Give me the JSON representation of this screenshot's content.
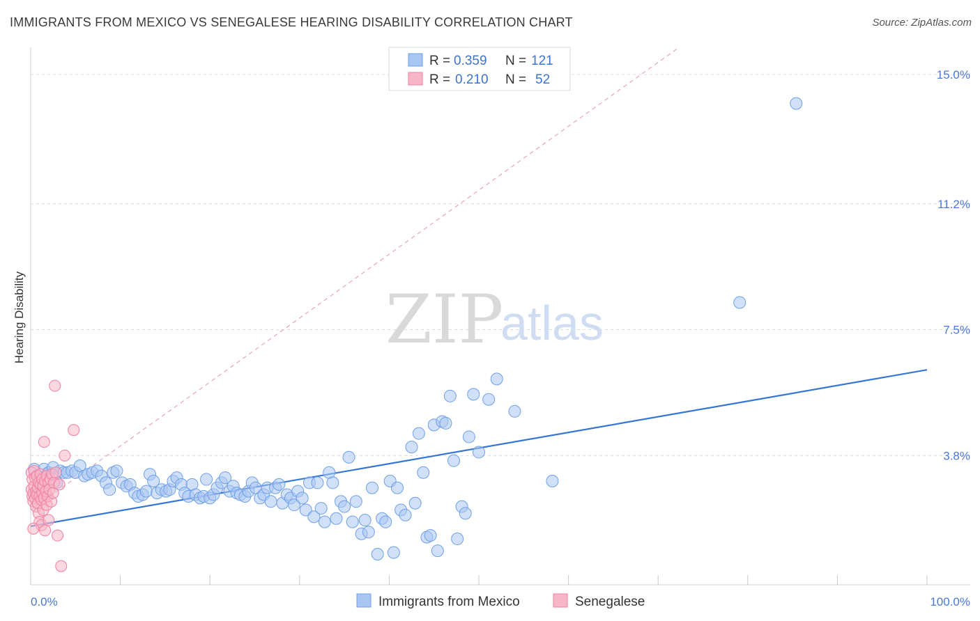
{
  "header": {
    "title": "IMMIGRANTS FROM MEXICO VS SENEGALESE HEARING DISABILITY CORRELATION CHART",
    "source": "Source: ZipAtlas.com"
  },
  "watermark": {
    "zip": "ZIP",
    "atlas": "atlas"
  },
  "legend": {
    "rows": [
      {
        "r_label": "R =",
        "r_value": "0.359",
        "n_label": "N =",
        "n_value": "121",
        "color": "#a9c6f3"
      },
      {
        "r_label": "R =",
        "r_value": "0.210",
        "n_label": "N =",
        "n_value": "52",
        "color": "#f7b6c8"
      }
    ]
  },
  "bottom_legend": [
    {
      "label": "Immigrants from Mexico",
      "color": "#a9c6f3"
    },
    {
      "label": "Senegalese",
      "color": "#f7b6c8"
    }
  ],
  "chart_data": {
    "type": "scatter",
    "title": "IMMIGRANTS FROM MEXICO VS SENEGALESE HEARING DISABILITY CORRELATION CHART",
    "ylabel": "Hearing Disability",
    "xlabel": "",
    "xlim": [
      0,
      100
    ],
    "ylim": [
      0,
      15.8
    ],
    "x_tick_labels": [
      "0.0%",
      "100.0%"
    ],
    "y_ticks": [
      3.8,
      7.5,
      11.2,
      15.0
    ],
    "y_tick_labels": [
      "3.8%",
      "7.5%",
      "11.2%",
      "15.0%"
    ],
    "grid": true,
    "legend_position": "top-center",
    "colors": {
      "mexico": "#6fa0e8",
      "mexico_fill": "#a9c6f3",
      "senegalese": "#ef7fa0",
      "senegalese_fill": "#f7b6c8",
      "trend_blue": "#3575d4",
      "trend_pink": "#e9a3b6"
    },
    "series": [
      {
        "name": "Immigrants from Mexico",
        "r": 0.359,
        "n": 121,
        "trend": {
          "x": [
            0,
            100
          ],
          "y": [
            1.72,
            6.32
          ]
        },
        "points": [
          [
            0.4,
            3.4
          ],
          [
            0.8,
            3.2
          ],
          [
            1.2,
            3.1
          ],
          [
            1.5,
            3.4
          ],
          [
            1.8,
            3.25
          ],
          [
            2.0,
            3.3
          ],
          [
            2.5,
            3.45
          ],
          [
            2.9,
            3.0
          ],
          [
            3.3,
            3.35
          ],
          [
            3.7,
            3.3
          ],
          [
            4.1,
            3.3
          ],
          [
            4.6,
            3.35
          ],
          [
            5.0,
            3.3
          ],
          [
            5.5,
            3.5
          ],
          [
            6.0,
            3.2
          ],
          [
            6.4,
            3.25
          ],
          [
            6.9,
            3.3
          ],
          [
            7.4,
            3.35
          ],
          [
            7.9,
            3.2
          ],
          [
            8.4,
            3.0
          ],
          [
            8.8,
            2.8
          ],
          [
            9.2,
            3.3
          ],
          [
            9.6,
            3.35
          ],
          [
            10.2,
            3.0
          ],
          [
            10.7,
            2.9
          ],
          [
            11.1,
            2.95
          ],
          [
            11.6,
            2.7
          ],
          [
            12.0,
            2.6
          ],
          [
            12.5,
            2.65
          ],
          [
            12.9,
            2.75
          ],
          [
            13.3,
            3.25
          ],
          [
            13.7,
            3.05
          ],
          [
            14.1,
            2.7
          ],
          [
            14.6,
            2.8
          ],
          [
            15.1,
            2.75
          ],
          [
            15.5,
            2.8
          ],
          [
            15.9,
            3.05
          ],
          [
            16.3,
            3.15
          ],
          [
            16.8,
            2.95
          ],
          [
            17.2,
            2.7
          ],
          [
            17.6,
            2.6
          ],
          [
            18.0,
            2.95
          ],
          [
            18.4,
            2.65
          ],
          [
            18.9,
            2.55
          ],
          [
            19.3,
            2.6
          ],
          [
            19.6,
            3.1
          ],
          [
            20.0,
            2.55
          ],
          [
            20.4,
            2.65
          ],
          [
            20.8,
            2.85
          ],
          [
            21.3,
            3.0
          ],
          [
            21.7,
            3.15
          ],
          [
            22.2,
            2.75
          ],
          [
            22.6,
            2.9
          ],
          [
            23.0,
            2.7
          ],
          [
            23.4,
            2.65
          ],
          [
            23.9,
            2.6
          ],
          [
            24.3,
            2.75
          ],
          [
            24.7,
            3.0
          ],
          [
            25.1,
            2.85
          ],
          [
            25.6,
            2.55
          ],
          [
            26.0,
            2.65
          ],
          [
            26.4,
            2.85
          ],
          [
            26.8,
            2.45
          ],
          [
            27.3,
            2.85
          ],
          [
            27.7,
            2.95
          ],
          [
            28.1,
            2.4
          ],
          [
            28.6,
            2.65
          ],
          [
            29.0,
            2.55
          ],
          [
            29.4,
            2.35
          ],
          [
            29.8,
            2.75
          ],
          [
            30.3,
            2.55
          ],
          [
            30.7,
            2.2
          ],
          [
            31.1,
            3.0
          ],
          [
            31.6,
            2.0
          ],
          [
            32.0,
            3.0
          ],
          [
            32.4,
            2.25
          ],
          [
            32.8,
            1.85
          ],
          [
            33.3,
            3.3
          ],
          [
            33.7,
            3.0
          ],
          [
            34.1,
            1.95
          ],
          [
            34.6,
            2.45
          ],
          [
            35.0,
            2.3
          ],
          [
            35.5,
            3.75
          ],
          [
            35.9,
            1.85
          ],
          [
            36.3,
            2.45
          ],
          [
            36.9,
            1.5
          ],
          [
            37.3,
            1.9
          ],
          [
            37.7,
            1.55
          ],
          [
            38.1,
            2.85
          ],
          [
            38.7,
            0.9
          ],
          [
            39.2,
            1.95
          ],
          [
            39.6,
            1.85
          ],
          [
            40.1,
            3.05
          ],
          [
            40.5,
            0.95
          ],
          [
            40.9,
            2.85
          ],
          [
            41.3,
            2.2
          ],
          [
            41.8,
            2.05
          ],
          [
            42.5,
            4.05
          ],
          [
            42.9,
            2.4
          ],
          [
            43.3,
            4.45
          ],
          [
            43.8,
            3.3
          ],
          [
            44.2,
            1.4
          ],
          [
            44.6,
            1.45
          ],
          [
            45.0,
            4.7
          ],
          [
            45.4,
            1.0
          ],
          [
            45.9,
            4.8
          ],
          [
            46.3,
            4.75
          ],
          [
            46.8,
            5.55
          ],
          [
            47.2,
            3.65
          ],
          [
            47.6,
            1.35
          ],
          [
            48.1,
            2.3
          ],
          [
            48.5,
            2.1
          ],
          [
            48.9,
            4.35
          ],
          [
            49.4,
            5.6
          ],
          [
            50.0,
            3.9
          ],
          [
            51.1,
            5.45
          ],
          [
            52.0,
            6.05
          ],
          [
            54.0,
            5.1
          ],
          [
            58.2,
            3.05
          ],
          [
            79.1,
            8.3
          ],
          [
            85.4,
            14.15
          ]
        ]
      },
      {
        "name": "Senegalese",
        "r": 0.21,
        "n": 52,
        "trend": {
          "x": [
            0,
            100
          ],
          "y": [
            2.2,
            21.0
          ]
        },
        "points": [
          [
            0.1,
            3.3
          ],
          [
            0.1,
            2.8
          ],
          [
            0.2,
            2.6
          ],
          [
            0.2,
            3.1
          ],
          [
            0.3,
            2.7
          ],
          [
            0.3,
            2.45
          ],
          [
            0.4,
            3.35
          ],
          [
            0.4,
            2.9
          ],
          [
            0.5,
            2.55
          ],
          [
            0.5,
            3.15
          ],
          [
            0.6,
            2.3
          ],
          [
            0.6,
            2.75
          ],
          [
            0.7,
            3.2
          ],
          [
            0.7,
            2.65
          ],
          [
            0.8,
            2.85
          ],
          [
            0.8,
            2.4
          ],
          [
            0.9,
            3.0
          ],
          [
            0.9,
            2.1
          ],
          [
            1.0,
            2.6
          ],
          [
            1.0,
            1.85
          ],
          [
            1.1,
            2.95
          ],
          [
            1.1,
            3.25
          ],
          [
            1.2,
            2.5
          ],
          [
            1.2,
            1.75
          ],
          [
            1.3,
            2.7
          ],
          [
            1.3,
            3.1
          ],
          [
            1.4,
            2.2
          ],
          [
            1.4,
            2.9
          ],
          [
            1.5,
            4.2
          ],
          [
            1.5,
            2.55
          ],
          [
            1.6,
            3.05
          ],
          [
            1.6,
            1.6
          ],
          [
            1.7,
            2.75
          ],
          [
            1.8,
            3.2
          ],
          [
            1.8,
            2.35
          ],
          [
            1.9,
            2.6
          ],
          [
            2.0,
            3.0
          ],
          [
            2.0,
            1.9
          ],
          [
            2.1,
            2.8
          ],
          [
            2.2,
            3.1
          ],
          [
            2.3,
            2.45
          ],
          [
            2.4,
            3.25
          ],
          [
            2.5,
            2.7
          ],
          [
            2.6,
            3.0
          ],
          [
            2.7,
            5.85
          ],
          [
            2.8,
            3.3
          ],
          [
            3.0,
            1.45
          ],
          [
            3.2,
            2.95
          ],
          [
            3.4,
            0.55
          ],
          [
            3.8,
            3.8
          ],
          [
            4.8,
            4.55
          ],
          [
            0.3,
            1.65
          ]
        ]
      }
    ]
  }
}
